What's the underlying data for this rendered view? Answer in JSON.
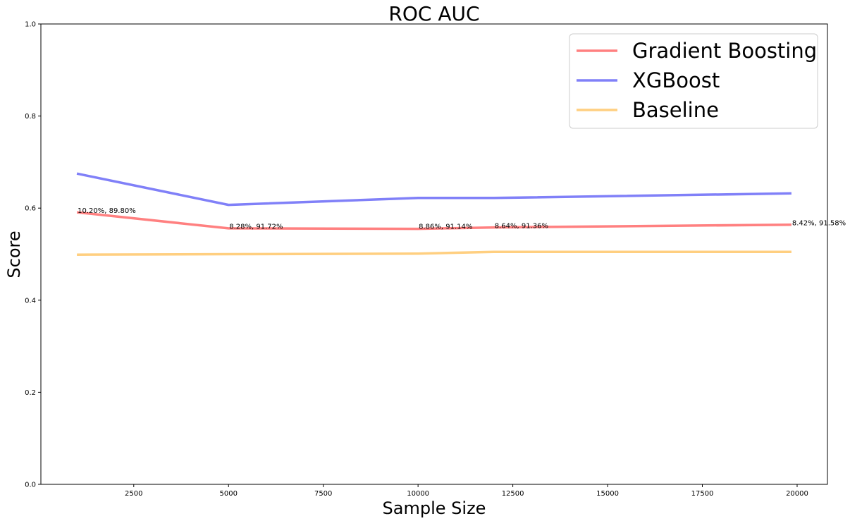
{
  "chart_data": {
    "type": "line",
    "title": "ROC AUC",
    "xlabel": "Sample Size",
    "ylabel": "Score",
    "xlim": [
      50,
      20800
    ],
    "ylim": [
      0.0,
      1.0
    ],
    "xticks": [
      2500,
      5000,
      7500,
      10000,
      12500,
      15000,
      17500,
      20000
    ],
    "yticks": [
      0.0,
      0.2,
      0.4,
      0.6,
      0.8,
      1.0
    ],
    "x": [
      1000,
      5000,
      10000,
      12000,
      19850
    ],
    "series": [
      {
        "name": "Gradient Boosting",
        "color": "#ff8080",
        "values": [
          0.591,
          0.556,
          0.555,
          0.558,
          0.564
        ]
      },
      {
        "name": "XGBoost",
        "color": "#8080f8",
        "values": [
          0.675,
          0.607,
          0.622,
          0.622,
          0.632
        ]
      },
      {
        "name": "Baseline",
        "color": "#ffcf80",
        "values": [
          0.499,
          0.5,
          0.501,
          0.505,
          0.505
        ]
      }
    ],
    "annotations": [
      {
        "x": 1000,
        "y": 0.593,
        "text": "10.20%, 89.80%"
      },
      {
        "x": 5000,
        "y": 0.558,
        "text": "8.28%, 91.72%"
      },
      {
        "x": 10000,
        "y": 0.558,
        "text": "8.86%, 91.14%"
      },
      {
        "x": 12000,
        "y": 0.56,
        "text": "8.64%, 91.36%"
      },
      {
        "x": 19850,
        "y": 0.566,
        "text": "8.42%, 91.58%"
      }
    ],
    "legend_position": "top-right",
    "grid": false
  }
}
